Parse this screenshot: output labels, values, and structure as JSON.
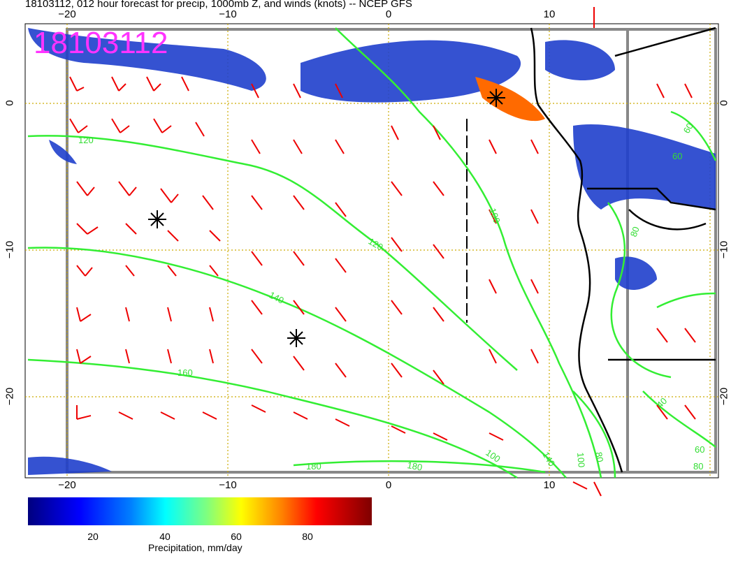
{
  "title": "18103112, 012 hour forecast for precip, 1000mb Z, and winds (knots) -- NCEP GFS",
  "stamp": "18103112",
  "axes": {
    "x_ticks_top": [
      "−20",
      "−10",
      "0",
      "10"
    ],
    "x_ticks_bottom": [
      "−20",
      "−10",
      "0",
      "10"
    ],
    "y_ticks_left": [
      "0",
      "−10",
      "−20"
    ],
    "y_ticks_right": [
      "0",
      "−10",
      "−20"
    ]
  },
  "contour_labels": [
    "120",
    "140",
    "160",
    "180",
    "100",
    "120",
    "140",
    "100",
    "100",
    "180",
    "80",
    "60",
    "80",
    "60",
    "40",
    "60",
    "80"
  ],
  "colorbar": {
    "ticks": [
      "20",
      "40",
      "60",
      "80"
    ],
    "label": "Precipitation, mm/day"
  },
  "colors": {
    "contour": "#33ee33",
    "wind_barb": "#ee0000",
    "grid": "#ccaa00",
    "stamp": "#ff33ff"
  }
}
